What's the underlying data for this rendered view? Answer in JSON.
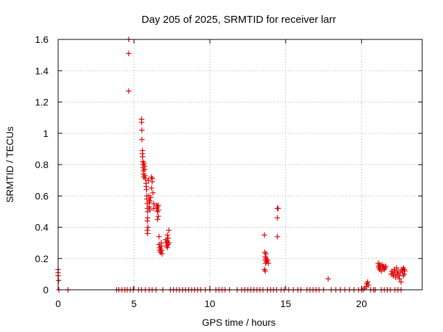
{
  "chart_data": {
    "type": "scatter",
    "title": "Day 205 of 2025, SRMTID for receiver larr",
    "xlabel": "GPS time / hours",
    "ylabel": "SRMTID / TECUs",
    "xlim": [
      0,
      24
    ],
    "ylim": [
      0,
      1.6
    ],
    "x_ticks": [
      0,
      5,
      10,
      15,
      20
    ],
    "x_tick_labels": [
      "0",
      "5",
      "10",
      "15",
      "20"
    ],
    "y_ticks": [
      0,
      0.2,
      0.4,
      0.6,
      0.8,
      1,
      1.2,
      1.4,
      1.6
    ],
    "y_tick_labels": [
      "0",
      "0.2",
      "0.4",
      "0.6",
      "0.8",
      "1",
      "1.2",
      "1.4",
      "1.6"
    ],
    "grid": true,
    "marker": "+",
    "marker_color": "#dd0000",
    "series": [
      {
        "name": "SRMTID",
        "points": [
          [
            0.0,
            0.13
          ],
          [
            0.0,
            0.11
          ],
          [
            0.0,
            0.09
          ],
          [
            0.03,
            0.06
          ],
          [
            0.05,
            0.0
          ],
          [
            0.65,
            0.0
          ],
          [
            3.85,
            0.0
          ],
          [
            4.0,
            0.0
          ],
          [
            4.2,
            0.0
          ],
          [
            4.4,
            0.0
          ],
          [
            4.55,
            0.0
          ],
          [
            4.65,
            1.6
          ],
          [
            4.65,
            1.51
          ],
          [
            4.65,
            1.27
          ],
          [
            4.75,
            0.0
          ],
          [
            4.95,
            0.0
          ],
          [
            5.5,
            1.09
          ],
          [
            5.5,
            1.07
          ],
          [
            5.52,
            1.02
          ],
          [
            5.52,
            0.96
          ],
          [
            5.55,
            0.89
          ],
          [
            5.55,
            0.87
          ],
          [
            5.57,
            0.85
          ],
          [
            5.58,
            0.82
          ],
          [
            5.6,
            0.8
          ],
          [
            5.6,
            0.78
          ],
          [
            5.62,
            0.76
          ],
          [
            5.62,
            0.74
          ],
          [
            5.65,
            0.81
          ],
          [
            5.65,
            0.72
          ],
          [
            5.7,
            0.79
          ],
          [
            5.7,
            0.77
          ],
          [
            5.72,
            0.73
          ],
          [
            5.75,
            0.71
          ],
          [
            5.75,
            0.0
          ],
          [
            5.8,
            0.68
          ],
          [
            5.8,
            0.66
          ],
          [
            5.82,
            0.64
          ],
          [
            5.85,
            0.6
          ],
          [
            5.85,
            0.58
          ],
          [
            5.88,
            0.55
          ],
          [
            5.9,
            0.52
          ],
          [
            5.9,
            0.5
          ],
          [
            5.9,
            0.46
          ],
          [
            5.88,
            0.44
          ],
          [
            5.92,
            0.4
          ],
          [
            5.88,
            0.38
          ],
          [
            5.9,
            0.36
          ],
          [
            5.95,
            0.7
          ],
          [
            5.98,
            0.6
          ],
          [
            6.0,
            0.56
          ],
          [
            6.0,
            0.53
          ],
          [
            6.05,
            0.57
          ],
          [
            6.05,
            0.51
          ],
          [
            6.1,
            0.59
          ],
          [
            6.15,
            0.65
          ],
          [
            6.2,
            0.69
          ],
          [
            6.2,
            0.71
          ],
          [
            6.15,
            0.72
          ],
          [
            6.25,
            0.62
          ],
          [
            6.3,
            0.55
          ],
          [
            6.3,
            0.52
          ],
          [
            6.2,
            0.0
          ],
          [
            6.0,
            0.0
          ],
          [
            5.5,
            0.0
          ],
          [
            5.3,
            0.0
          ],
          [
            6.45,
            0.0
          ],
          [
            6.5,
            0.54
          ],
          [
            6.5,
            0.52
          ],
          [
            6.55,
            0.53
          ],
          [
            6.55,
            0.5
          ],
          [
            6.6,
            0.54
          ],
          [
            6.6,
            0.51
          ],
          [
            6.6,
            0.47
          ],
          [
            6.55,
            0.45
          ],
          [
            6.65,
            0.34
          ],
          [
            6.65,
            0.29
          ],
          [
            6.7,
            0.27
          ],
          [
            6.7,
            0.25
          ],
          [
            6.75,
            0.26
          ],
          [
            6.75,
            0.24
          ],
          [
            6.8,
            0.3
          ],
          [
            6.8,
            0.28
          ],
          [
            6.82,
            0.25
          ],
          [
            6.85,
            0.23
          ],
          [
            6.9,
            0.0
          ],
          [
            7.1,
            0.32
          ],
          [
            7.12,
            0.3
          ],
          [
            7.15,
            0.28
          ],
          [
            7.18,
            0.31
          ],
          [
            7.2,
            0.35
          ],
          [
            7.2,
            0.27
          ],
          [
            7.25,
            0.33
          ],
          [
            7.25,
            0.29
          ],
          [
            7.3,
            0.38
          ],
          [
            7.3,
            0.3
          ],
          [
            7.4,
            0.0
          ],
          [
            7.6,
            0.0
          ],
          [
            7.8,
            0.0
          ],
          [
            8.0,
            0.0
          ],
          [
            8.2,
            0.0
          ],
          [
            8.4,
            0.0
          ],
          [
            8.6,
            0.0
          ],
          [
            8.8,
            0.0
          ],
          [
            9.0,
            0.0
          ],
          [
            9.2,
            0.0
          ],
          [
            9.4,
            0.0
          ],
          [
            9.7,
            0.0
          ],
          [
            10.0,
            0.0
          ],
          [
            10.4,
            0.0
          ],
          [
            10.6,
            0.0
          ],
          [
            10.8,
            0.0
          ],
          [
            11.0,
            0.0
          ],
          [
            11.3,
            0.0
          ],
          [
            11.8,
            0.0
          ],
          [
            12.1,
            0.0
          ],
          [
            12.3,
            0.0
          ],
          [
            12.5,
            0.0
          ],
          [
            12.7,
            0.0
          ],
          [
            12.9,
            0.0
          ],
          [
            13.1,
            0.0
          ],
          [
            13.3,
            0.0
          ],
          [
            13.5,
            0.0
          ],
          [
            13.6,
            0.35
          ],
          [
            13.62,
            0.24
          ],
          [
            13.65,
            0.21
          ],
          [
            13.65,
            0.19
          ],
          [
            13.68,
            0.17
          ],
          [
            13.7,
            0.23
          ],
          [
            13.72,
            0.2
          ],
          [
            13.75,
            0.18
          ],
          [
            13.6,
            0.13
          ],
          [
            13.65,
            0.12
          ],
          [
            13.8,
            0.19
          ],
          [
            13.85,
            0.17
          ],
          [
            13.8,
            0.0
          ],
          [
            14.0,
            0.0
          ],
          [
            14.2,
            0.0
          ],
          [
            14.4,
            0.0
          ],
          [
            14.45,
            0.52
          ],
          [
            14.5,
            0.52
          ],
          [
            14.45,
            0.46
          ],
          [
            14.45,
            0.34
          ],
          [
            14.7,
            0.0
          ],
          [
            14.9,
            0.0
          ],
          [
            15.2,
            0.0
          ],
          [
            15.5,
            0.0
          ],
          [
            15.8,
            0.0
          ],
          [
            16.0,
            0.0
          ],
          [
            16.4,
            0.0
          ],
          [
            16.6,
            0.0
          ],
          [
            16.8,
            0.0
          ],
          [
            17.0,
            0.0
          ],
          [
            17.2,
            0.0
          ],
          [
            17.5,
            0.0
          ],
          [
            17.8,
            0.07
          ],
          [
            18.0,
            0.0
          ],
          [
            18.3,
            0.0
          ],
          [
            18.6,
            0.0
          ],
          [
            18.9,
            0.0
          ],
          [
            19.2,
            0.0
          ],
          [
            19.5,
            0.0
          ],
          [
            19.8,
            0.0
          ],
          [
            20.0,
            0.0
          ],
          [
            20.1,
            0.0
          ],
          [
            20.2,
            0.01
          ],
          [
            20.3,
            0.02
          ],
          [
            20.35,
            0.04
          ],
          [
            20.4,
            0.05
          ],
          [
            20.45,
            0.03
          ],
          [
            20.6,
            0.0
          ],
          [
            20.8,
            0.0
          ],
          [
            20.9,
            0.0
          ],
          [
            21.1,
            0.17
          ],
          [
            21.12,
            0.15
          ],
          [
            21.15,
            0.14
          ],
          [
            21.2,
            0.16
          ],
          [
            21.2,
            0.13
          ],
          [
            21.25,
            0.15
          ],
          [
            21.3,
            0.12
          ],
          [
            21.35,
            0.16
          ],
          [
            21.4,
            0.14
          ],
          [
            21.45,
            0.15
          ],
          [
            21.5,
            0.13
          ],
          [
            21.55,
            0.14
          ],
          [
            21.6,
            0.15
          ],
          [
            21.3,
            0.0
          ],
          [
            21.5,
            0.0
          ],
          [
            21.7,
            0.0
          ],
          [
            21.9,
            0.0
          ],
          [
            21.95,
            0.1
          ],
          [
            22.0,
            0.12
          ],
          [
            22.05,
            0.1
          ],
          [
            22.1,
            0.09
          ],
          [
            22.15,
            0.13
          ],
          [
            22.2,
            0.11
          ],
          [
            22.25,
            0.08
          ],
          [
            22.3,
            0.14
          ],
          [
            22.35,
            0.1
          ],
          [
            22.4,
            0.12
          ],
          [
            22.45,
            0.09
          ],
          [
            22.5,
            0.07
          ],
          [
            22.55,
            0.11
          ],
          [
            22.6,
            0.05
          ],
          [
            22.65,
            0.13
          ],
          [
            22.7,
            0.12
          ],
          [
            22.75,
            0.09
          ],
          [
            22.75,
            0.14
          ],
          [
            22.8,
            0.1
          ],
          [
            22.8,
            0.13
          ],
          [
            22.85,
            0.12
          ],
          [
            22.2,
            0.0
          ],
          [
            22.4,
            0.0
          ],
          [
            22.6,
            0.0
          ]
        ]
      }
    ]
  }
}
